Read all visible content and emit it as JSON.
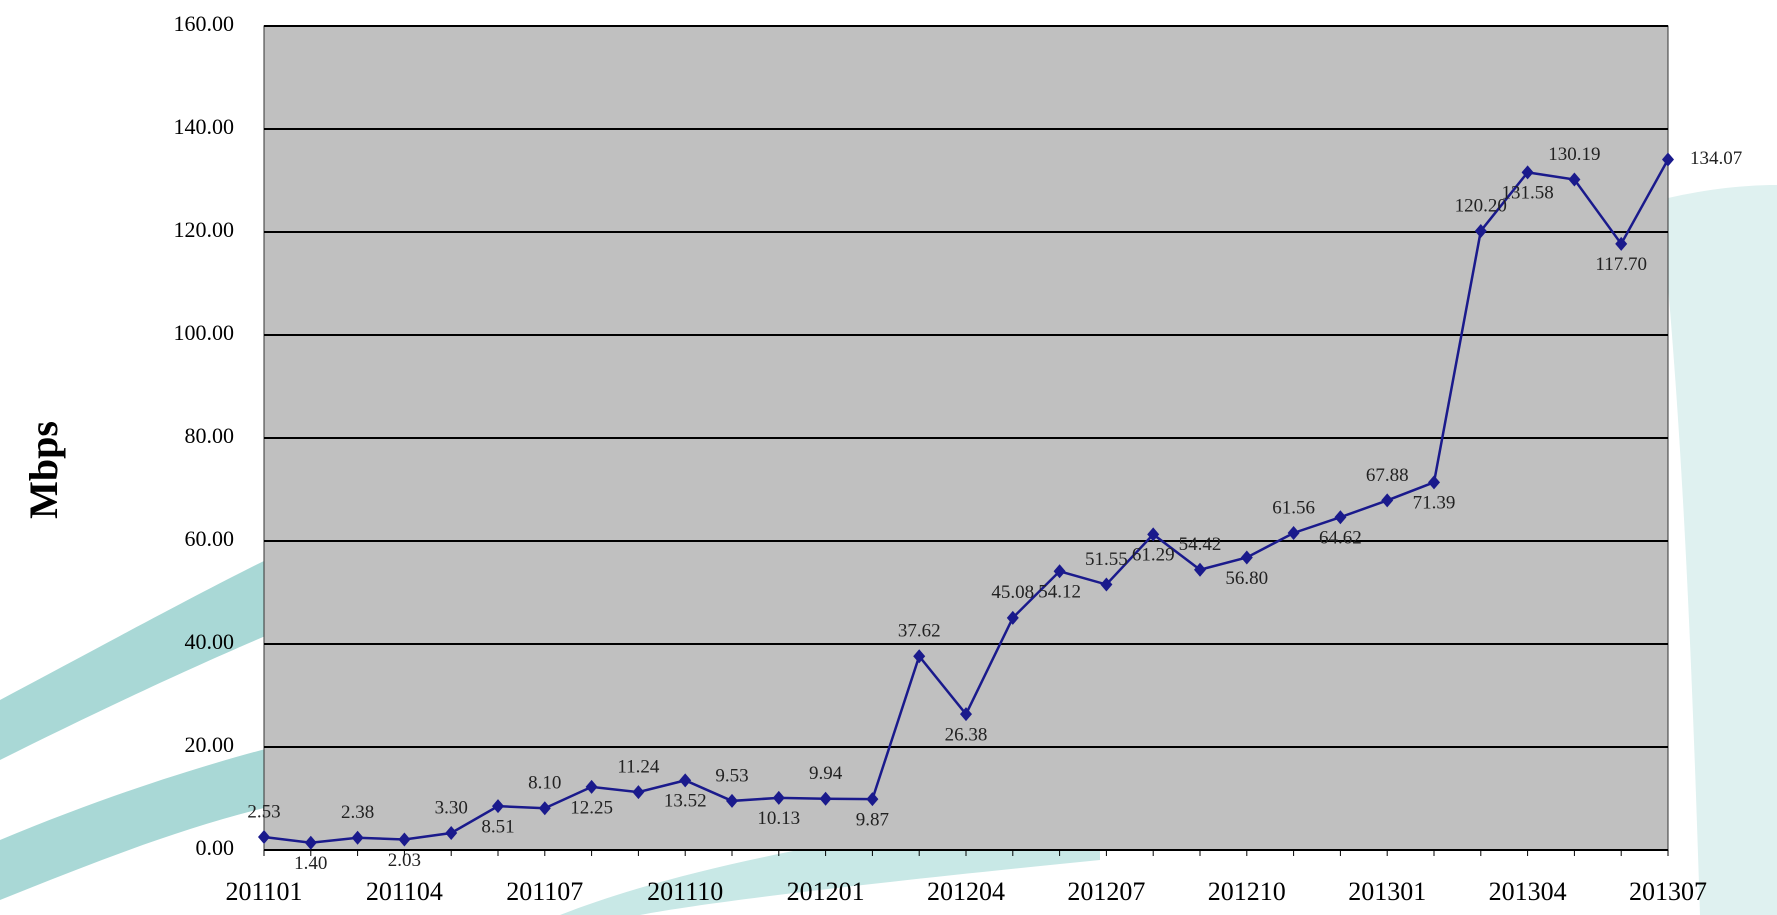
{
  "chart_data": {
    "type": "line",
    "y_label": "Mbps",
    "categories": [
      "201101",
      null,
      null,
      "201104",
      null,
      null,
      "201107",
      null,
      null,
      "201110",
      null,
      null,
      "201201",
      null,
      null,
      "201204",
      null,
      null,
      "201207",
      null,
      null,
      "201210",
      null,
      null,
      "201301",
      null,
      null,
      "201304",
      null,
      null,
      "201307"
    ],
    "series": [
      {
        "name": "Mbps",
        "color": "#1a1a8c",
        "values": [
          2.53,
          1.4,
          2.38,
          2.03,
          3.3,
          8.51,
          8.1,
          12.25,
          11.24,
          13.52,
          9.53,
          10.13,
          9.94,
          9.87,
          37.62,
          26.38,
          45.08,
          54.12,
          51.55,
          61.29,
          54.42,
          56.8,
          61.56,
          64.62,
          67.88,
          71.39,
          120.2,
          131.58,
          130.19,
          117.7,
          134.07
        ],
        "value_labels": [
          "2.53",
          "1.40",
          "2.38",
          "2.03",
          "3.30",
          "8.51",
          "8.10",
          "12.25",
          "11.24",
          "13.52",
          "9.53",
          "10.13",
          "9.94",
          "9.87",
          "37.62",
          "26.38",
          "45.08",
          "54.12",
          "51.55",
          "61.29",
          "54.42",
          "56.80",
          "61.56",
          "64.62",
          "67.88",
          "71.39",
          "120.20",
          "131.58",
          "130.19",
          "117.70",
          "134.07"
        ]
      }
    ],
    "ylim": [
      0,
      160
    ],
    "yticks": [
      {
        "value": 0,
        "label": "0.00"
      },
      {
        "value": 20,
        "label": "20.00"
      },
      {
        "value": 40,
        "label": "40.00"
      },
      {
        "value": 60,
        "label": "60.00"
      },
      {
        "value": 80,
        "label": "80.00"
      },
      {
        "value": 100,
        "label": "100.00"
      },
      {
        "value": 120,
        "label": "120.00"
      },
      {
        "value": 140,
        "label": "140.00"
      },
      {
        "value": 160,
        "label": "160.00"
      }
    ],
    "grid": true,
    "plot_background": "#c0c0c0"
  }
}
